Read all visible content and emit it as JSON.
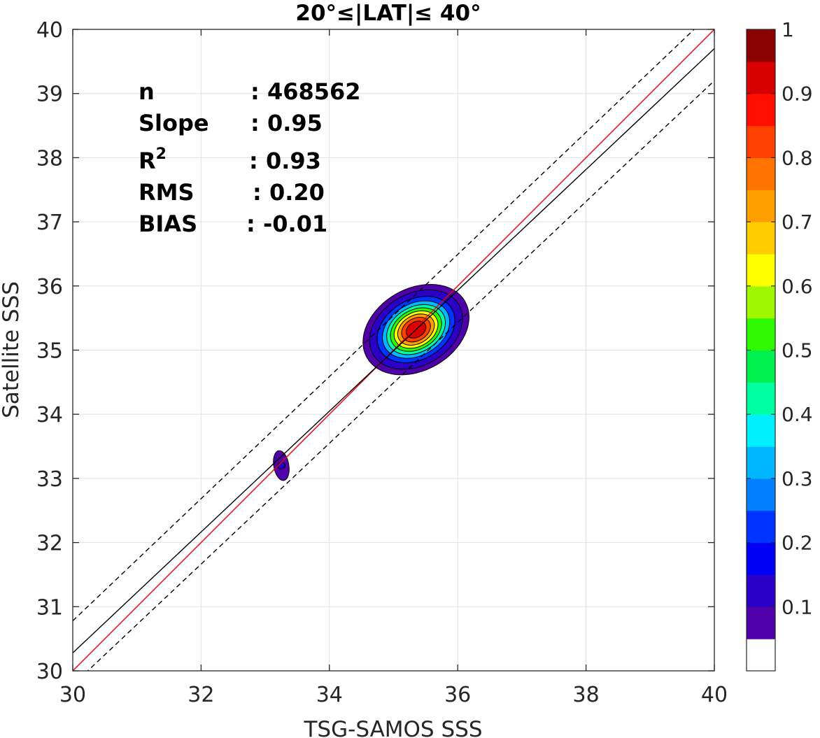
{
  "chart_data": {
    "type": "heatmap",
    "subtype": "normalized density contour scatter",
    "title": "20°≤|LAT|≤ 40°",
    "xlabel": "TSG-SAMOS SSS",
    "ylabel": "Satellite SSS",
    "xlim": [
      30,
      40
    ],
    "ylim": [
      30,
      40
    ],
    "xticks": [
      30,
      32,
      34,
      36,
      38,
      40
    ],
    "yticks": [
      30,
      31,
      32,
      33,
      34,
      35,
      36,
      37,
      38,
      39,
      40
    ],
    "grid": true,
    "stats": [
      {
        "label": "n",
        "value": ": 468562"
      },
      {
        "label": "Slope",
        "value": ": 0.95"
      },
      {
        "label": "R",
        "sup": "2",
        "value": ": 0.93"
      },
      {
        "label": "RMS",
        "value": ": 0.20"
      },
      {
        "label": "BIAS",
        "value": ": -0.01"
      }
    ],
    "lines": [
      {
        "kind": "one-to-one",
        "color": "#e8000b",
        "style": "solid",
        "x": [
          30,
          40
        ],
        "y": [
          30,
          40
        ]
      },
      {
        "kind": "regression",
        "color": "#000000",
        "style": "solid",
        "x": [
          30,
          40
        ],
        "y": [
          30.28,
          39.7
        ]
      },
      {
        "kind": "upper-envelope",
        "color": "#000000",
        "style": "dashed",
        "x": [
          30,
          40
        ],
        "y": [
          30.78,
          40.3
        ]
      },
      {
        "kind": "lower-envelope",
        "color": "#000000",
        "style": "dashed",
        "x": [
          30,
          40
        ],
        "y": [
          29.78,
          39.2
        ]
      }
    ],
    "density_peaks": [
      {
        "x": 35.35,
        "y": 35.32,
        "sx": 0.36,
        "sy": 0.26,
        "rot_deg": 30,
        "peak": 1.0
      },
      {
        "x": 33.25,
        "y": 33.2,
        "sx": 0.1,
        "sy": 0.2,
        "rot_deg": 10,
        "peak": 0.1
      }
    ],
    "contour_levels": [
      0.05,
      0.1,
      0.2,
      0.3,
      0.4,
      0.5,
      0.6,
      0.7,
      0.8,
      0.9
    ],
    "colorbar": {
      "range": [
        0,
        1
      ],
      "ticks": [
        "0.1",
        "0.2",
        "0.3",
        "0.4",
        "0.5",
        "0.6",
        "0.7",
        "0.8",
        "0.9",
        "1"
      ],
      "colors": [
        "#ffffff",
        "#5000a8",
        "#2a00c8",
        "#0000f5",
        "#0033ff",
        "#0080ff",
        "#00b6ff",
        "#00f0ff",
        "#00ffa0",
        "#00f050",
        "#2dfa00",
        "#a0f800",
        "#ffff00",
        "#ffcc00",
        "#ffa000",
        "#ff7300",
        "#ff4000",
        "#ff0d00",
        "#d80000",
        "#8b0000"
      ]
    }
  }
}
